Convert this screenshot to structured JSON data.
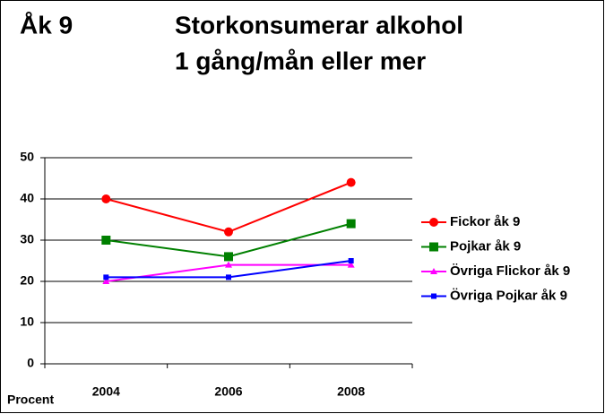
{
  "chart_data": {
    "type": "line",
    "heading": "Åk 9",
    "title": "Storkonsumerar alkohol",
    "subtitle": "1 gång/mån eller mer",
    "y_label": "Procent",
    "categories": [
      "2004",
      "2006",
      "2008"
    ],
    "series": [
      {
        "name": "Fickor åk 9",
        "color": "#ff0000",
        "marker": "circle",
        "values": [
          40,
          32,
          44
        ]
      },
      {
        "name": "Pojkar åk 9",
        "color": "#008000",
        "marker": "square",
        "values": [
          30,
          26,
          34
        ]
      },
      {
        "name": "Övriga Flickor åk 9",
        "color": "#ff00ff",
        "marker": "triangle",
        "values": [
          20,
          24,
          24
        ]
      },
      {
        "name": "Övriga Pojkar åk 9",
        "color": "#0000ff",
        "marker": "small-square",
        "values": [
          21,
          21,
          25
        ]
      }
    ],
    "ylim": [
      0,
      50
    ],
    "yticks": [
      0,
      10,
      20,
      30,
      40,
      50
    ],
    "grid": true,
    "legend": "right"
  }
}
